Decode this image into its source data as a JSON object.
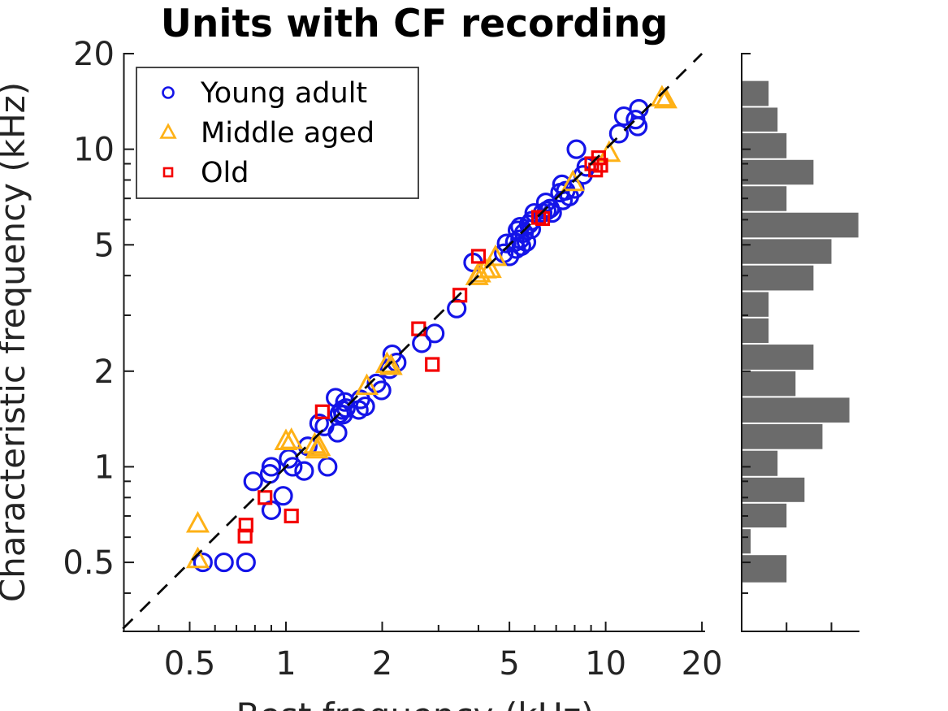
{
  "figure": {
    "title": "Units with CF recording",
    "xlabel": "Best frequency (kHz)",
    "ylabel": "Characteristic frequency (kHz)"
  },
  "legend": {
    "items": [
      {
        "label": "Young adult",
        "marker": "circle-icon",
        "color": "#1414e8"
      },
      {
        "label": "Middle aged",
        "marker": "triangle-icon",
        "color": "#feb116"
      },
      {
        "label": "Old",
        "marker": "square-icon",
        "color": "#f40000"
      }
    ]
  },
  "chart_data": {
    "type": "scatter",
    "title": "Units with CF recording",
    "xlabel": "Best frequency (kHz)",
    "ylabel": "Characteristic frequency (kHz)",
    "x_scale": "log",
    "y_scale": "log",
    "xlim": [
      0.31,
      20.3
    ],
    "ylim": [
      0.3,
      20.0
    ],
    "grid": false,
    "legend_position": "upper-left-inside",
    "x_ticks": {
      "major": [
        0.5,
        1,
        2,
        5,
        10,
        20
      ],
      "labels": [
        "0.5",
        "1",
        "2",
        "5",
        "10",
        "20"
      ],
      "minor": [
        0.4,
        0.6,
        0.7,
        0.8,
        0.9,
        3,
        4,
        6,
        7,
        8,
        9
      ]
    },
    "y_ticks": {
      "major": [
        0.5,
        1,
        2,
        5,
        10,
        20
      ],
      "labels": [
        "0.5",
        "1",
        "2",
        "5",
        "10",
        "20"
      ],
      "minor": [
        0.4,
        0.6,
        0.7,
        0.8,
        0.9,
        3,
        4,
        6,
        7,
        8,
        9
      ]
    },
    "reference_line": {
      "type": "identity y=x",
      "style": "dashed",
      "color": "#000000"
    },
    "series": [
      {
        "name": "Young adult",
        "marker": "circle",
        "color": "#1414e8",
        "points": [
          [
            0.55,
            0.5
          ],
          [
            0.64,
            0.5
          ],
          [
            0.75,
            0.5
          ],
          [
            0.79,
            0.9
          ],
          [
            0.89,
            0.95
          ],
          [
            0.9,
            1.0
          ],
          [
            0.9,
            0.73
          ],
          [
            0.98,
            0.81
          ],
          [
            1.02,
            1.06
          ],
          [
            1.05,
            1.0
          ],
          [
            1.14,
            0.97
          ],
          [
            1.17,
            1.16
          ],
          [
            1.27,
            1.37
          ],
          [
            1.32,
            1.34
          ],
          [
            1.35,
            1.0
          ],
          [
            1.43,
            1.65
          ],
          [
            1.45,
            1.28
          ],
          [
            1.47,
            1.47
          ],
          [
            1.5,
            1.51
          ],
          [
            1.51,
            1.46
          ],
          [
            1.53,
            1.6
          ],
          [
            1.54,
            1.53
          ],
          [
            1.69,
            1.51
          ],
          [
            1.71,
            1.63
          ],
          [
            1.77,
            1.55
          ],
          [
            1.92,
            1.83
          ],
          [
            1.99,
            1.74
          ],
          [
            2.11,
            2.03
          ],
          [
            2.15,
            2.26
          ],
          [
            2.22,
            2.13
          ],
          [
            2.66,
            2.45
          ],
          [
            2.92,
            2.63
          ],
          [
            3.42,
            3.15
          ],
          [
            3.85,
            4.4
          ],
          [
            4.8,
            4.7
          ],
          [
            4.9,
            5.05
          ],
          [
            5.0,
            4.6
          ],
          [
            5.2,
            5.1
          ],
          [
            5.25,
            4.85
          ],
          [
            5.3,
            5.55
          ],
          [
            5.4,
            5.2
          ],
          [
            5.4,
            5.7
          ],
          [
            5.45,
            4.95
          ],
          [
            5.55,
            5.45
          ],
          [
            5.65,
            5.1
          ],
          [
            5.75,
            5.8
          ],
          [
            5.85,
            5.6
          ],
          [
            5.87,
            5.95
          ],
          [
            5.98,
            6.3
          ],
          [
            6.35,
            6.3
          ],
          [
            6.5,
            6.8
          ],
          [
            6.54,
            6.4
          ],
          [
            6.7,
            6.5
          ],
          [
            6.8,
            6.3
          ],
          [
            7.2,
            7.3
          ],
          [
            7.3,
            7.75
          ],
          [
            7.35,
            6.9
          ],
          [
            7.5,
            7.4
          ],
          [
            7.7,
            7.1
          ],
          [
            8.0,
            7.5
          ],
          [
            8.5,
            8.3
          ],
          [
            8.7,
            8.8
          ],
          [
            8.1,
            10.0
          ],
          [
            11.0,
            11.2
          ],
          [
            11.4,
            12.7
          ],
          [
            12.4,
            12.4
          ],
          [
            12.6,
            11.8
          ],
          [
            12.7,
            13.4
          ]
        ]
      },
      {
        "name": "Middle aged",
        "marker": "triangle",
        "color": "#feb116",
        "points": [
          [
            0.53,
            0.66
          ],
          [
            0.53,
            0.51
          ],
          [
            1.0,
            1.2
          ],
          [
            1.04,
            1.21
          ],
          [
            1.23,
            1.17
          ],
          [
            1.25,
            1.13
          ],
          [
            1.27,
            1.15
          ],
          [
            1.79,
            1.79
          ],
          [
            2.07,
            2.1
          ],
          [
            2.13,
            2.07
          ],
          [
            3.96,
            3.97
          ],
          [
            4.03,
            4.05
          ],
          [
            4.2,
            4.17
          ],
          [
            4.35,
            4.18
          ],
          [
            4.52,
            4.56
          ],
          [
            7.9,
            7.85
          ],
          [
            10.25,
            9.7
          ],
          [
            15.0,
            14.5
          ],
          [
            15.4,
            14.3
          ]
        ]
      },
      {
        "name": "Old",
        "marker": "square",
        "color": "#f40000",
        "points": [
          [
            0.745,
            0.605
          ],
          [
            0.75,
            0.655
          ],
          [
            0.86,
            0.8
          ],
          [
            1.04,
            0.7
          ],
          [
            1.3,
            1.49
          ],
          [
            2.6,
            2.72
          ],
          [
            2.87,
            2.1
          ],
          [
            3.5,
            3.47
          ],
          [
            4.0,
            4.6
          ],
          [
            6.17,
            6.1
          ],
          [
            6.35,
            6.05
          ],
          [
            9.05,
            9.0
          ],
          [
            9.5,
            9.4
          ],
          [
            9.65,
            8.9
          ],
          [
            9.3,
            8.6
          ]
        ]
      }
    ],
    "marginal_histogram": {
      "orientation": "horizontal",
      "axis": "characteristic frequency (kHz)",
      "bar_color": "#6b6b6b",
      "bin_edges_khz_desc": [
        16.5,
        13.6,
        11.3,
        9.31,
        7.69,
        6.35,
        5.24,
        4.33,
        3.57,
        2.95,
        2.44,
        2.01,
        1.66,
        1.37,
        1.13,
        0.93,
        0.77,
        0.64,
        0.53,
        0.43
      ],
      "counts": [
        3,
        4,
        5,
        8,
        5,
        13,
        10,
        8,
        3,
        3,
        8,
        6,
        12,
        9,
        4,
        7,
        5,
        1,
        5
      ],
      "count_ticks": [
        5,
        10
      ],
      "count_max": 13
    }
  }
}
